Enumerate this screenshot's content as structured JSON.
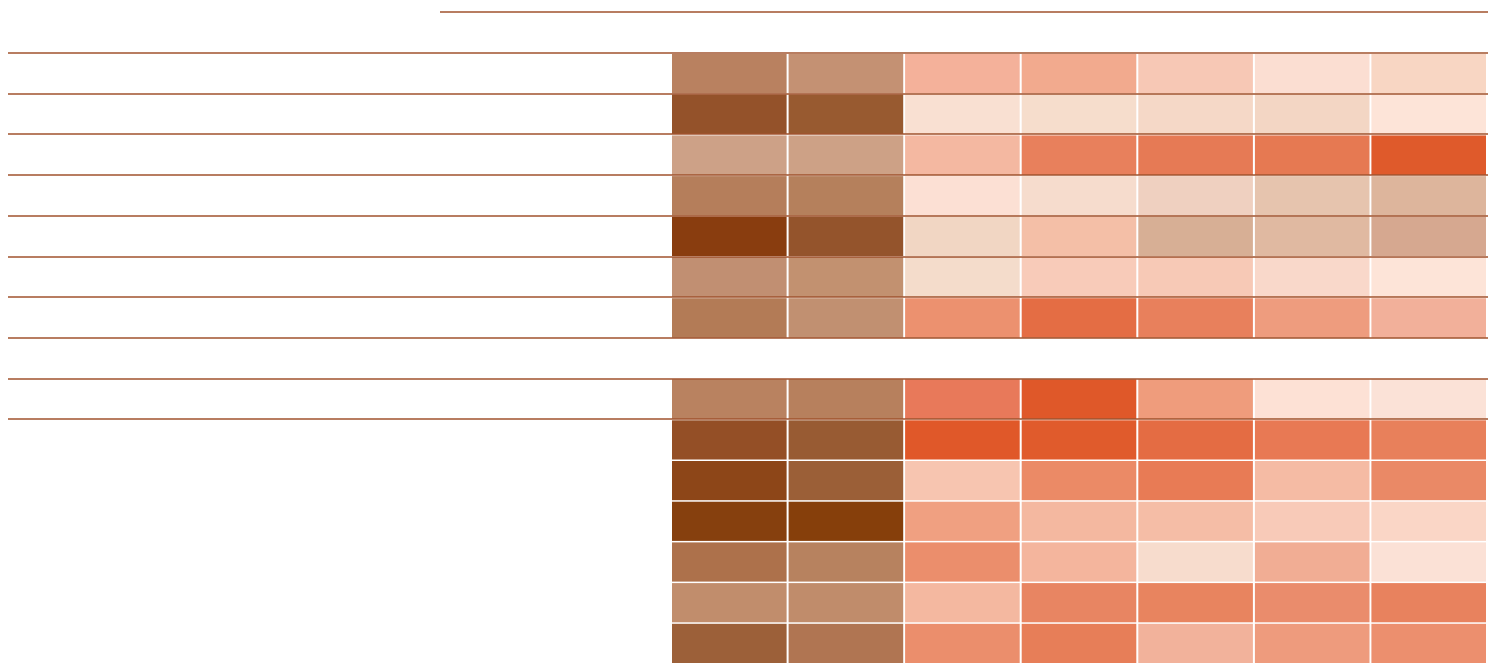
{
  "chart_data": {
    "type": "heatmap",
    "title": "",
    "xlabel": "",
    "ylabel": "",
    "columns": 7,
    "row_lines_color": "#a0522d",
    "rows": [
      {
        "colors": [
          "#b98160",
          "#c49173",
          "#f4b19a",
          "#f2aa8e",
          "#f7c8b5",
          "#fbded2",
          "#f8d6c3"
        ]
      },
      {
        "colors": [
          "#94522a",
          "#985a30",
          "#f9e0d2",
          "#f6ddcc",
          "#f5d8c7",
          "#f3d6c4",
          "#fde4d8"
        ]
      },
      {
        "colors": [
          "#cda187",
          "#cda186",
          "#f4b8a1",
          "#e8805c",
          "#e67a55",
          "#e67952",
          "#df5a2b"
        ]
      },
      {
        "colors": [
          "#b57e5b",
          "#b5805c",
          "#fce0d4",
          "#f6dccd",
          "#efd0c0",
          "#e6c4ae",
          "#ddb59c"
        ]
      },
      {
        "colors": [
          "#893d0f",
          "#94542c",
          "#f1d6c3",
          "#f4bfa7",
          "#d7af95",
          "#e0b9a1",
          "#d6a890"
        ]
      },
      {
        "colors": [
          "#c18f72",
          "#c29170",
          "#f4dccb",
          "#f8cbb9",
          "#f7c9b6",
          "#f9d8ca",
          "#fde4d8"
        ]
      },
      {
        "colors": [
          "#b37b56",
          "#c19071",
          "#ec916f",
          "#e46d44",
          "#e8805c",
          "#ee9c7e",
          "#f2b09a"
        ]
      },
      {
        "colors": null
      },
      {
        "colors": [
          "#b98260",
          "#b7805d",
          "#e8795a",
          "#df5829",
          "#ef9c7c",
          "#fde1d5",
          "#fbe2d7"
        ]
      },
      {
        "colors": [
          "#944f26",
          "#985b33",
          "#e05829",
          "#e05b2c",
          "#e46c43",
          "#e87954",
          "#e8805b"
        ]
      },
      {
        "colors": [
          "#8d4618",
          "#9b5f37",
          "#f7c5b0",
          "#eb8a66",
          "#e87b55",
          "#f5bba4",
          "#ea8966"
        ]
      },
      {
        "colors": [
          "#86400e",
          "#863f0b",
          "#f0a081",
          "#f4b8a0",
          "#f5bda6",
          "#f8cab8",
          "#fad6c6"
        ]
      },
      {
        "colors": [
          "#ad714b",
          "#b7825f",
          "#eb8e6c",
          "#f4b59d",
          "#f7dccd",
          "#f1ad94",
          "#fbe1d6"
        ]
      },
      {
        "colors": [
          "#c18d6c",
          "#c08c6b",
          "#f4b8a0",
          "#e88562",
          "#e8845f",
          "#ea8c6c",
          "#e8825e"
        ]
      },
      {
        "colors": [
          "#9c6039",
          "#b07552",
          "#eb8e6c",
          "#e77e58",
          "#f2b29b",
          "#ee9b7d",
          "#ec8f6e"
        ]
      }
    ]
  }
}
